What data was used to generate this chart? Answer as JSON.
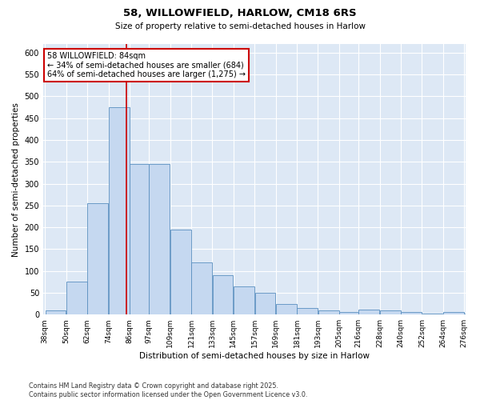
{
  "title1": "58, WILLOWFIELD, HARLOW, CM18 6RS",
  "title2": "Size of property relative to semi-detached houses in Harlow",
  "xlabel": "Distribution of semi-detached houses by size in Harlow",
  "ylabel": "Number of semi-detached properties",
  "footnote": "Contains HM Land Registry data © Crown copyright and database right 2025.\nContains public sector information licensed under the Open Government Licence v3.0.",
  "annotation_title": "58 WILLOWFIELD: 84sqm",
  "annotation_line1": "← 34% of semi-detached houses are smaller (684)",
  "annotation_line2": "64% of semi-detached houses are larger (1,275) →",
  "property_size": 84,
  "bar_edges": [
    38,
    50,
    62,
    74,
    86,
    97,
    109,
    121,
    133,
    145,
    157,
    169,
    181,
    193,
    205,
    216,
    228,
    240,
    252,
    264,
    276
  ],
  "bar_heights": [
    10,
    75,
    255,
    475,
    345,
    345,
    195,
    120,
    90,
    65,
    50,
    25,
    15,
    10,
    5,
    12,
    10,
    5,
    2,
    5,
    2
  ],
  "bar_color": "#c5d8f0",
  "bar_edge_color": "#5a8fc0",
  "vline_color": "#cc0000",
  "bg_color": "#dde8f5",
  "annotation_box_color": "#cc0000",
  "annotation_bg": "#ffffff",
  "ylim": [
    0,
    620
  ],
  "yticks": [
    0,
    50,
    100,
    150,
    200,
    250,
    300,
    350,
    400,
    450,
    500,
    550,
    600
  ],
  "bin_labels": [
    "38sqm",
    "50sqm",
    "62sqm",
    "74sqm",
    "86sqm",
    "97sqm",
    "109sqm",
    "121sqm",
    "133sqm",
    "145sqm",
    "157sqm",
    "169sqm",
    "181sqm",
    "193sqm",
    "205sqm",
    "216sqm",
    "228sqm",
    "240sqm",
    "252sqm",
    "264sqm",
    "276sqm"
  ]
}
